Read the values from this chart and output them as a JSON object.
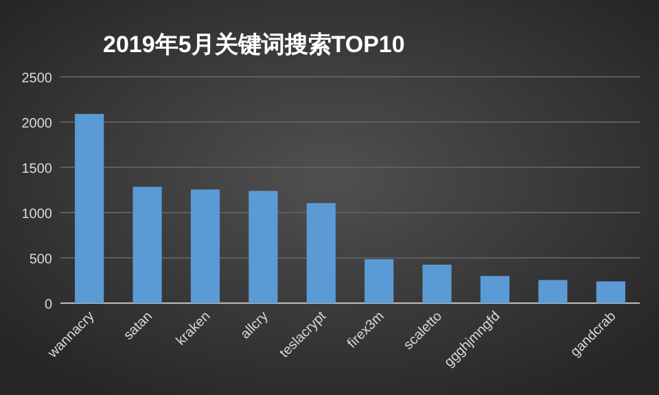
{
  "chart_data": {
    "type": "bar",
    "title": "2019年5月关键词搜索TOP10",
    "categories": [
      "wannacry",
      "satan",
      "kraken",
      "allcry",
      "teslacrypt",
      "firex3m",
      "scaletto",
      "ggghjmngfd",
      null,
      "gandcrab"
    ],
    "values": [
      2090,
      1285,
      1255,
      1240,
      1105,
      485,
      425,
      300,
      255,
      240
    ],
    "color": "#5b9bd5",
    "ylim": [
      0,
      2500
    ],
    "yticks": [
      0,
      500,
      1000,
      1500,
      2000,
      2500
    ],
    "grid": "y"
  }
}
